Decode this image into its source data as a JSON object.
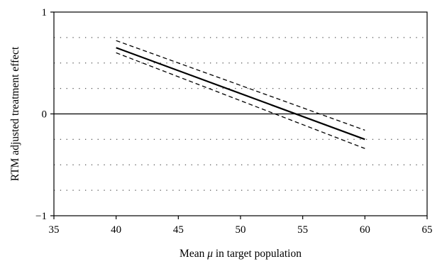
{
  "chart_data": {
    "type": "line",
    "title": "",
    "xlabel_prefix": "Mean ",
    "xlabel_symbol": "μ",
    "xlabel_suffix": " in target population",
    "ylabel": "RTM adjusted treatment effect",
    "xlim": [
      35,
      65
    ],
    "ylim": [
      -1,
      1
    ],
    "xticks": [
      35,
      40,
      45,
      50,
      55,
      60,
      65
    ],
    "yticks": [
      -1,
      0,
      1
    ],
    "ytick_labels": [
      "−1",
      "0",
      "1"
    ],
    "grid": {
      "y_dotted": [
        -0.75,
        -0.5,
        -0.25,
        0.25,
        0.5,
        0.75
      ],
      "x": false
    },
    "reference_line_y": 0,
    "legend": "none",
    "series": [
      {
        "style": "solid",
        "x": [
          40,
          60
        ],
        "y": [
          0.65,
          -0.25
        ]
      },
      {
        "style": "dashed",
        "x": [
          40,
          60
        ],
        "y": [
          0.72,
          -0.16
        ]
      },
      {
        "style": "dashed",
        "x": [
          40,
          60
        ],
        "y": [
          0.6,
          -0.34
        ]
      }
    ]
  }
}
